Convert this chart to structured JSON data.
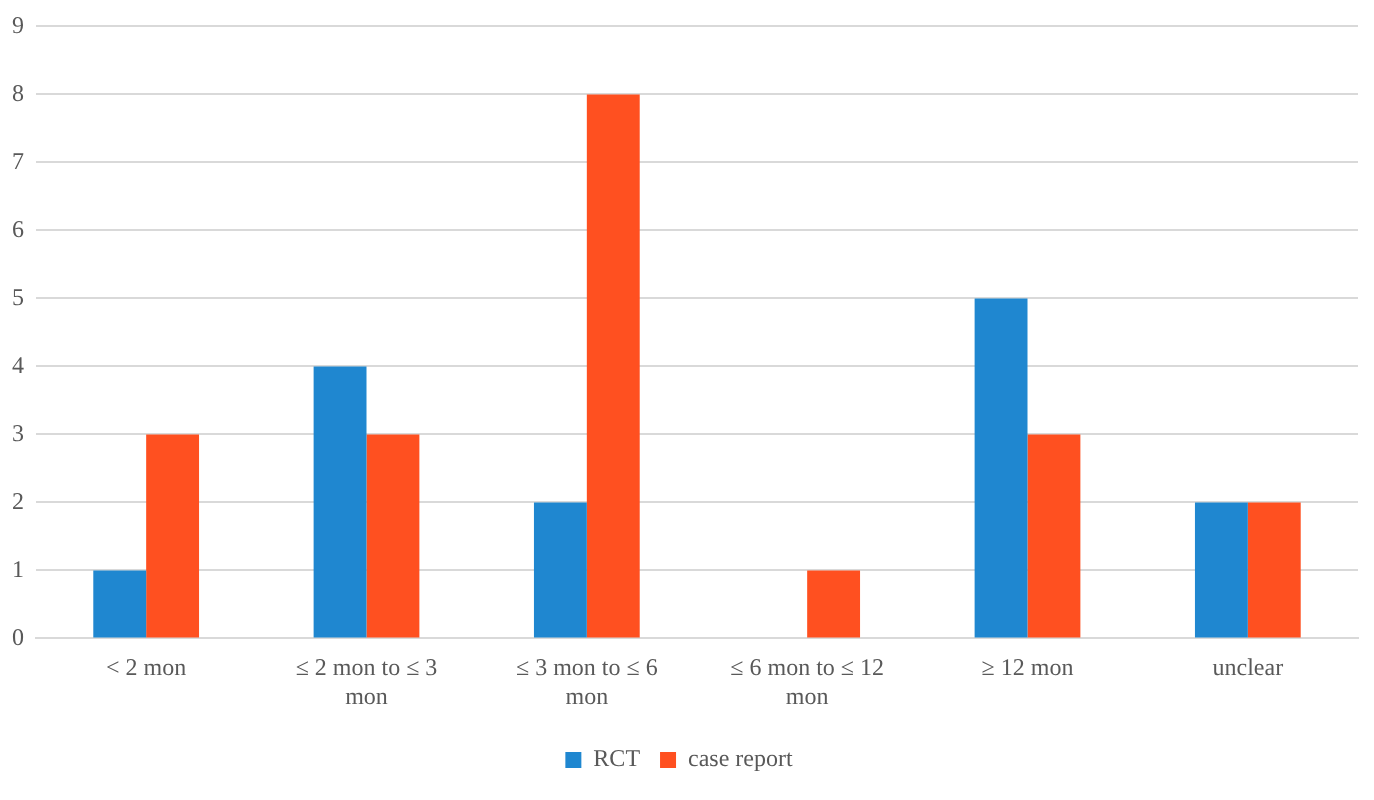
{
  "chart_data": {
    "type": "bar",
    "categories": [
      "< 2 mon",
      "≤ 2 mon to ≤ 3 mon",
      "≤ 3 mon to ≤ 6 mon",
      "≤ 6 mon to ≤ 12 mon",
      "≥ 12 mon",
      "unclear"
    ],
    "series": [
      {
        "name": "RCT",
        "color": "#1f87d0",
        "values": [
          1,
          4,
          2,
          0,
          5,
          2
        ]
      },
      {
        "name": "case report",
        "color": "#ff5020",
        "values": [
          3,
          3,
          8,
          1,
          3,
          2
        ]
      }
    ],
    "ylim": [
      0,
      9
    ],
    "yticks": [
      0,
      1,
      2,
      3,
      4,
      5,
      6,
      7,
      8,
      9
    ],
    "grid": "y",
    "legend": "bottom"
  }
}
